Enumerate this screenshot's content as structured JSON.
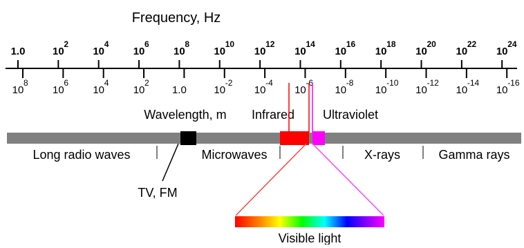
{
  "title": "Frequency, Hz",
  "frequency_ticks": [
    {
      "base": "1.0",
      "exp": ""
    },
    {
      "base": "10",
      "exp": "2"
    },
    {
      "base": "10",
      "exp": "4"
    },
    {
      "base": "10",
      "exp": "6"
    },
    {
      "base": "10",
      "exp": "8"
    },
    {
      "base": "10",
      "exp": "10"
    },
    {
      "base": "10",
      "exp": "12"
    },
    {
      "base": "10",
      "exp": "14"
    },
    {
      "base": "10",
      "exp": "16"
    },
    {
      "base": "10",
      "exp": "18"
    },
    {
      "base": "10",
      "exp": "20"
    },
    {
      "base": "10",
      "exp": "22"
    },
    {
      "base": "10",
      "exp": "24"
    }
  ],
  "wavelength_ticks": [
    {
      "base": "10",
      "exp": "8"
    },
    {
      "base": "10",
      "exp": "6"
    },
    {
      "base": "10",
      "exp": "4"
    },
    {
      "base": "10",
      "exp": "2"
    },
    {
      "base": "1.0",
      "exp": ""
    },
    {
      "base": "10",
      "exp": "-2"
    },
    {
      "base": "10",
      "exp": "-4"
    },
    {
      "base": "10",
      "exp": "-6"
    },
    {
      "base": "10",
      "exp": "-8"
    },
    {
      "base": "10",
      "exp": "-10"
    },
    {
      "base": "10",
      "exp": "-12"
    },
    {
      "base": "10",
      "exp": "-14"
    },
    {
      "base": "10",
      "exp": "-16"
    }
  ],
  "wavelength_label": "Wavelength, m",
  "bands": {
    "infrared": "Infrared",
    "ultraviolet": "Ultraviolet",
    "long_radio": "Long radio waves",
    "microwaves": "Microwaves",
    "xrays": "X-rays",
    "gamma": "Gamma rays",
    "tv_fm": "TV, FM",
    "visible": "Visible light"
  },
  "colors": {
    "band": "#808080",
    "tv_fm": "#000000",
    "infrared": "#ff0000",
    "ultraviolet": "#ff00ff",
    "line": "#000000"
  }
}
